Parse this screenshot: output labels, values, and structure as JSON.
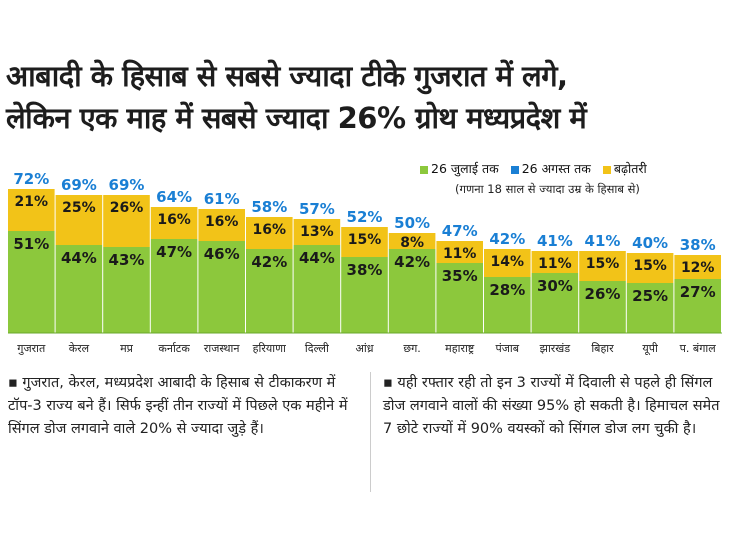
{
  "headline": {
    "line1": "आबादी के हिसाब से सबसे ज्यादा टीके गुजरात में लगे,",
    "line2": "लेकिन एक माह में सबसे ज्यादा 26% ग्रोथ मध्यप्रदेश में"
  },
  "legend": {
    "items": [
      {
        "label": "26 जुलाई तक",
        "color": "#8cc83c"
      },
      {
        "label": "26 अगस्त तक",
        "color": "#1a7fd4"
      },
      {
        "label": "बढ़ोतरी",
        "color": "#f2c318"
      }
    ],
    "note": "(गणना 18 साल से ज्यादा उम्र के हिसाब से)"
  },
  "chart_data": {
    "type": "bar",
    "stacked": true,
    "categories": [
      "गुजरात",
      "केरल",
      "मप्र",
      "कर्नाटक",
      "राजस्थान",
      "हरियाणा",
      "दिल्ली",
      "आंध्र",
      "छग.",
      "महाराष्ट्र",
      "पंजाब",
      "झारखंड",
      "बिहार",
      "यूपी",
      "प. बंगाल"
    ],
    "series": [
      {
        "name": "26 जुलाई तक",
        "values": [
          51,
          44,
          43,
          47,
          46,
          42,
          44,
          38,
          42,
          35,
          28,
          30,
          26,
          25,
          27
        ],
        "color": "#8cc83c"
      },
      {
        "name": "बढ़ोतरी",
        "values": [
          21,
          25,
          26,
          16,
          16,
          16,
          13,
          15,
          8,
          11,
          14,
          11,
          15,
          15,
          12
        ],
        "color": "#f2c318"
      }
    ],
    "totals": {
      "name": "26 अगस्त तक",
      "values": [
        72,
        69,
        69,
        64,
        61,
        58,
        57,
        52,
        50,
        47,
        42,
        41,
        41,
        40,
        38
      ],
      "color": "#1a7fd4"
    },
    "unit": "%",
    "ylim": [
      0,
      100
    ]
  },
  "notes": {
    "left": "▪ गुजरात, केरल, मध्यप्रदेश आबादी के हिसाब से टीकाकरण में टॉप-3 राज्य बने हैं। सिर्फ इन्हीं तीन राज्यों में पिछले एक महीने में सिंगल डोज लगवाने वाले 20% से ज्यादा जुड़े हैं।",
    "right": "▪ यही रफ्तार रही तो इन 3 राज्यों में दिवाली से पहले ही सिंगल डोज लगवाने वालों की संख्या 95% हो सकती है। हिमाचल समेत 7 छोटे राज्यों में 90% वयस्कों को सिंगल डोज लग चुकी है।"
  }
}
